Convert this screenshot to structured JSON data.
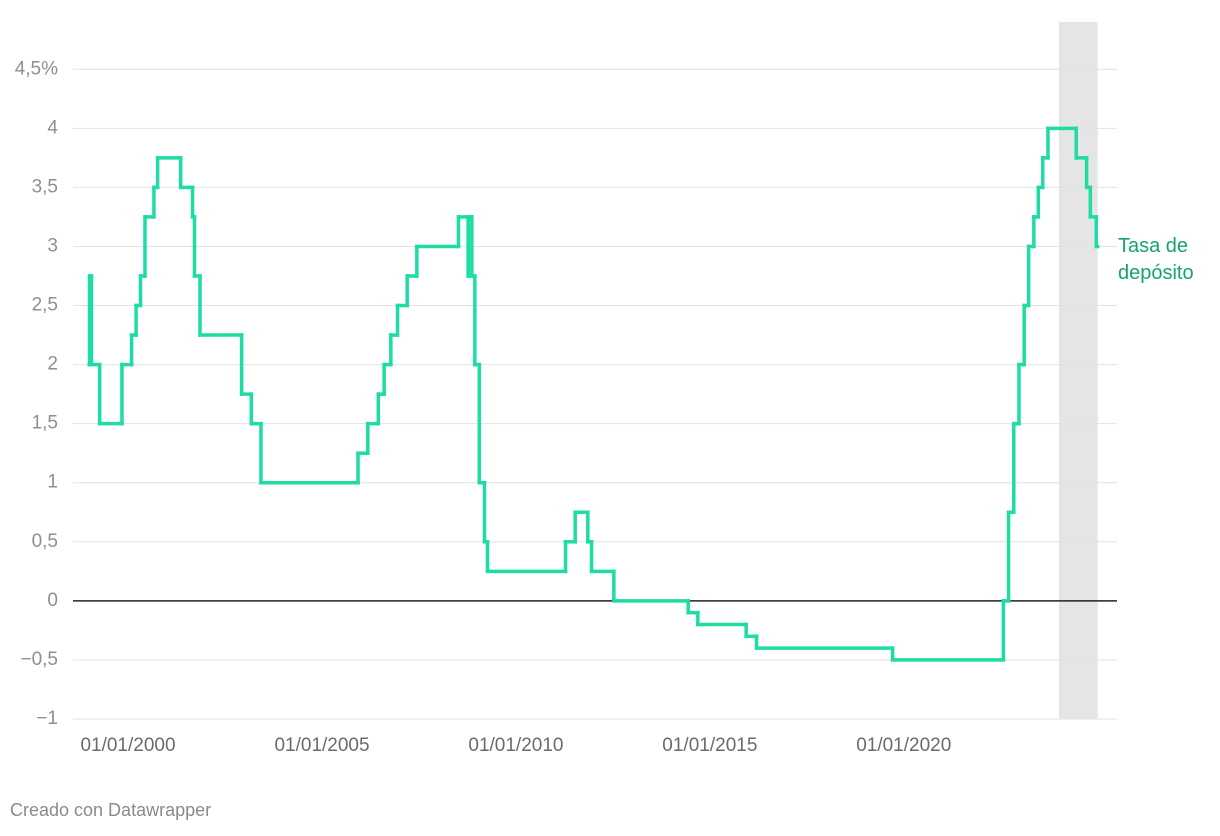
{
  "chart_data": {
    "type": "line",
    "step": true,
    "x": [
      "1999-01-01",
      "1999-01-04",
      "1999-01-22",
      "1999-04-09",
      "1999-11-05",
      "2000-02-04",
      "2000-03-17",
      "2000-04-28",
      "2000-06-09",
      "2000-09-01",
      "2000-10-06",
      "2001-05-11",
      "2001-08-31",
      "2001-09-18",
      "2001-11-09",
      "2002-12-06",
      "2003-03-07",
      "2003-06-06",
      "2005-12-06",
      "2006-03-08",
      "2006-06-15",
      "2006-08-09",
      "2006-10-11",
      "2006-12-13",
      "2007-03-14",
      "2007-06-13",
      "2008-07-09",
      "2008-10-08",
      "2008-10-09",
      "2008-11-12",
      "2008-12-10",
      "2009-01-21",
      "2009-03-11",
      "2009-04-08",
      "2011-04-13",
      "2011-07-13",
      "2011-11-09",
      "2011-12-14",
      "2012-07-11",
      "2014-06-11",
      "2014-09-10",
      "2015-12-09",
      "2016-03-16",
      "2019-09-18",
      "2022-07-27",
      "2022-09-14",
      "2022-11-02",
      "2022-12-21",
      "2023-02-08",
      "2023-03-22",
      "2023-05-10",
      "2023-06-21",
      "2023-08-02",
      "2023-09-20",
      "2024-06-12",
      "2024-09-18",
      "2024-10-23",
      "2024-12-18"
    ],
    "series": [
      {
        "name": "Tasa de depósito",
        "color": "#1ddca4",
        "values": [
          2.0,
          2.75,
          2.0,
          1.5,
          2.0,
          2.25,
          2.5,
          2.75,
          3.25,
          3.5,
          3.75,
          3.5,
          3.25,
          2.75,
          2.25,
          1.75,
          1.5,
          1.0,
          1.25,
          1.5,
          1.75,
          2.0,
          2.25,
          2.5,
          2.75,
          3.0,
          3.25,
          2.75,
          3.25,
          2.75,
          2.0,
          1.0,
          0.5,
          0.25,
          0.5,
          0.75,
          0.5,
          0.25,
          0.0,
          -0.1,
          -0.2,
          -0.3,
          -0.4,
          -0.5,
          0.0,
          0.75,
          1.5,
          2.0,
          2.5,
          3.0,
          3.25,
          3.5,
          3.75,
          4.0,
          3.75,
          3.5,
          3.25,
          3.0
        ]
      }
    ],
    "highlight_range": [
      "2024-01-01",
      "2024-12-31"
    ],
    "xlim": [
      "1998-08-01",
      "2025-07-01"
    ],
    "xticks": [
      {
        "value": "2000-01-01",
        "label": "01/01/2000"
      },
      {
        "value": "2005-01-01",
        "label": "01/01/2005"
      },
      {
        "value": "2010-01-01",
        "label": "01/01/2010"
      },
      {
        "value": "2015-01-01",
        "label": "01/01/2015"
      },
      {
        "value": "2020-01-01",
        "label": "01/01/2020"
      }
    ],
    "ylim": [
      -1,
      4.9
    ],
    "yticks": [
      {
        "value": -1,
        "label": "−1"
      },
      {
        "value": -0.5,
        "label": "−0,5"
      },
      0,
      {
        "value": 0.5,
        "label": "0,5"
      },
      1,
      {
        "value": 1.5,
        "label": "1,5"
      },
      2,
      {
        "value": 2.5,
        "label": "2,5"
      },
      3,
      {
        "value": 3.5,
        "label": "3,5"
      },
      4,
      {
        "value": 4.5,
        "label": "4,5%"
      }
    ],
    "grid": true,
    "source": "Creado con Datawrapper"
  }
}
